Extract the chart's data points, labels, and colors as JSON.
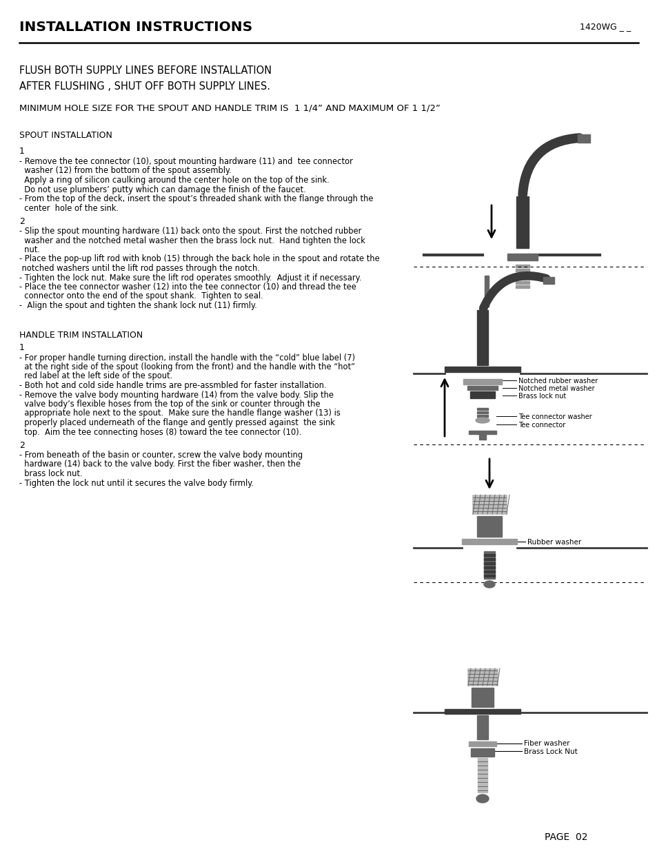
{
  "title": "INSTALLATION INSTRUCTIONS",
  "model": "1420WG _ _",
  "bg_color": "#ffffff",
  "text_color": "#000000",
  "page_label": "PAGE  02",
  "line1": "FLUSH BOTH SUPPLY LINES BEFORE INSTALLATION",
  "line2": "AFTER FLUSHING , SHUT OFF BOTH SUPPLY LINES.",
  "line3": "MINIMUM HOLE SIZE FOR THE SPOUT AND HANDLE TRIM IS  1 1/4” AND MAXIMUM OF 1 1/2”",
  "spout_header": "SPOUT INSTALLATION",
  "spout_1_num": "1",
  "spout_1_text": [
    "- Remove the tee connector (10), spout mounting hardware (11) and  tee connector",
    "  washer (12) from the bottom of the spout assembly.",
    "  Apply a ring of silicon caulking around the center hole on the top of the sink.",
    "  Do not use plumbers’ putty which can damage the finish of the faucet.",
    "- From the top of the deck, insert the spout’s threaded shank with the flange through the",
    "  center  hole of the sink."
  ],
  "spout_2_num": "2",
  "spout_2_text": [
    "- Slip the spout mounting hardware (11) back onto the spout. First the notched rubber",
    "  washer and the notched metal washer then the brass lock nut.  Hand tighten the lock",
    "  nut.",
    "- Place the pop-up lift rod with knob (15) through the back hole in the spout and rotate the",
    " notched washers until the lift rod passes through the notch.",
    "- Tighten the lock nut. Make sure the lift rod operates smoothly.  Adjust it if necessary.",
    "- Place the tee connector washer (12) into the tee connector (10) and thread the tee",
    "  connector onto the end of the spout shank.  Tighten to seal.",
    "-  Align the spout and tighten the shank lock nut (11) firmly."
  ],
  "handle_header": "HANDLE TRIM INSTALLATION",
  "handle_1_num": "1",
  "handle_1_text": [
    "- For proper handle turning direction, install the handle with the “cold” blue label (7)",
    "  at the right side of the spout (looking from the front) and the handle with the “hot”",
    "  red label at the left side of the spout.",
    "- Both hot and cold side handle trims are pre-assmbled for faster installation.",
    "- Remove the valve body mounting hardware (14) from the valve body. Slip the",
    "  valve body’s flexible hoses from the top of the sink or counter through the",
    "  appropriate hole next to the spout.  Make sure the handle flange washer (13) is",
    "  properly placed underneath of the flange and gently pressed against  the sink",
    "  top.  Aim the tee connecting hoses (8) toward the tee connector (10)."
  ],
  "handle_2_num": "2",
  "handle_2_text": [
    "- From beneath of the basin or counter, screw the valve body mounting",
    "  hardware (14) back to the valve body. First the fiber washer, then the",
    "  brass lock nut.",
    "- Tighten the lock nut until it secures the valve body firmly."
  ],
  "label_notched_rubber": "Notched rubber washer",
  "label_notched_metal": "Notched metal washer",
  "label_brass_lock": "Brass lock nut",
  "label_tee_washer": "Tee connector washer",
  "label_tee_connector": "Tee connector",
  "label_rubber_washer": "Rubber washer",
  "label_fiber_washer": "Fiber washer",
  "label_brass_lock_nut": "Brass Lock Nut"
}
